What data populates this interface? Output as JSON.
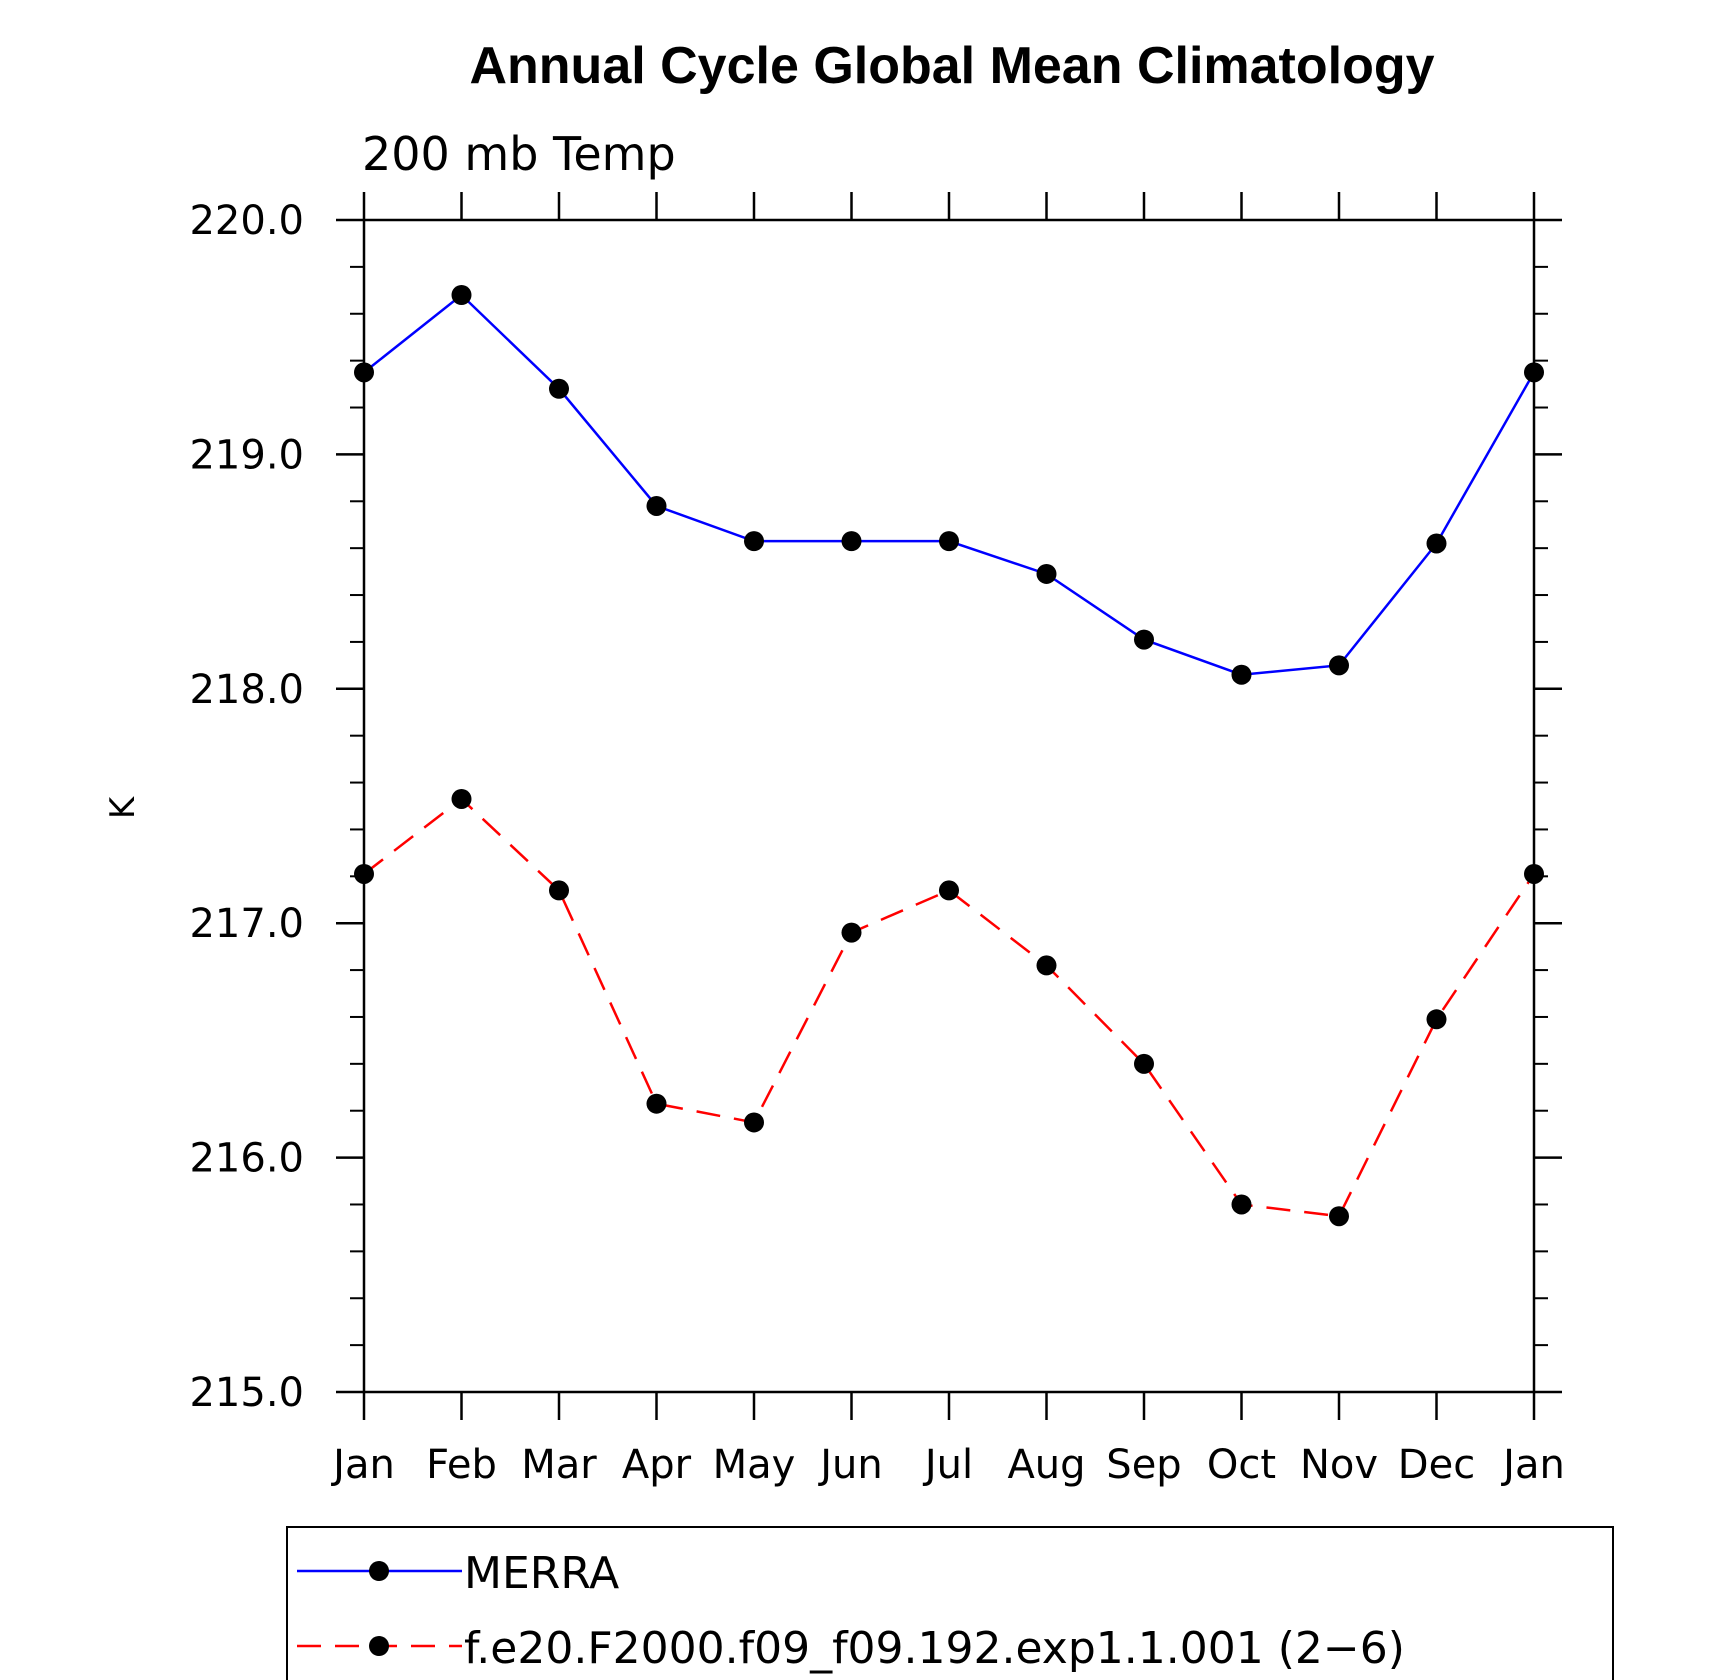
{
  "chart_data": {
    "type": "line",
    "title": "Annual Cycle Global Mean Climatology",
    "subtitle": "200 mb Temp",
    "xlabel": "",
    "ylabel": "K",
    "categories": [
      "Jan",
      "Feb",
      "Mar",
      "Apr",
      "May",
      "Jun",
      "Jul",
      "Aug",
      "Sep",
      "Oct",
      "Nov",
      "Dec",
      "Jan"
    ],
    "ylim": [
      215.0,
      220.0
    ],
    "yticks": [
      "215.0",
      "216.0",
      "217.0",
      "218.0",
      "219.0",
      "220.0"
    ],
    "grid": false,
    "legend_position": "bottom",
    "series": [
      {
        "name": "MERRA",
        "color": "#0000ff",
        "dash": "solid",
        "values": [
          219.35,
          219.68,
          219.28,
          218.78,
          218.63,
          218.63,
          218.63,
          218.49,
          218.21,
          218.06,
          218.1,
          218.62,
          219.35
        ]
      },
      {
        "name": "f.e20.F2000.f09_f09.192.exp1.1.001 (2−6)",
        "color": "#ff0000",
        "dash": "dashed",
        "values": [
          217.21,
          217.53,
          217.14,
          216.23,
          216.15,
          216.96,
          217.14,
          216.82,
          216.4,
          215.8,
          215.75,
          216.59,
          217.21
        ]
      }
    ]
  }
}
